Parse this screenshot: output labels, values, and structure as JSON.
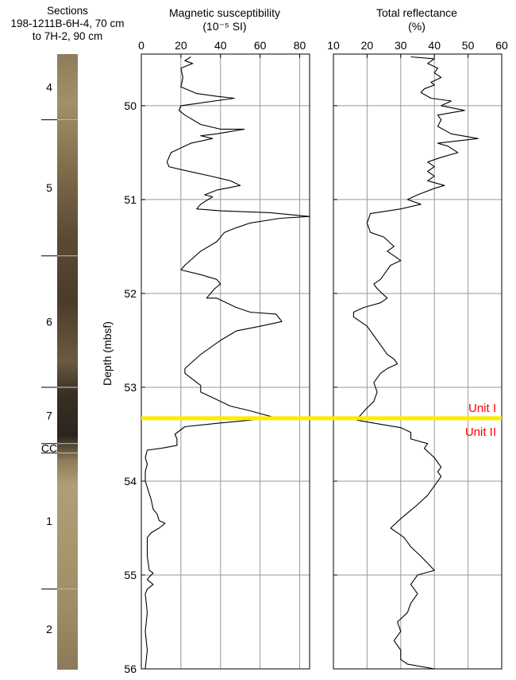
{
  "core": {
    "header": [
      "Sections",
      "198-1211B-6H-4, 70 cm",
      "to 7H-2, 90 cm"
    ],
    "sections": [
      {
        "label": "4",
        "top": 49.45,
        "bottom": 50.15
      },
      {
        "label": "5",
        "top": 50.15,
        "bottom": 51.6
      },
      {
        "label": "6",
        "top": 51.6,
        "bottom": 53.0
      },
      {
        "label": "7",
        "top": 53.0,
        "bottom": 53.6
      },
      {
        "label": "CC",
        "top": 53.6,
        "bottom": 53.7
      },
      {
        "label": "1",
        "top": 53.7,
        "bottom": 55.15
      },
      {
        "label": "2",
        "top": 55.15,
        "bottom": 56.0
      }
    ]
  },
  "chart_data": [
    {
      "type": "line",
      "title": [
        "Magnetic susceptibility",
        "(10⁻⁵ SI)"
      ],
      "xlabel": "",
      "ylabel": "Depth (mbsf)",
      "xlim": [
        0,
        85
      ],
      "ylim": [
        56,
        49.45
      ],
      "xticks": [
        0,
        20,
        40,
        60,
        80
      ],
      "yticks": [
        50,
        51,
        52,
        53,
        54,
        55,
        56
      ],
      "grid": true,
      "points": [
        [
          25,
          49.48
        ],
        [
          22,
          49.52
        ],
        [
          26,
          49.55
        ],
        [
          20,
          49.6
        ],
        [
          21,
          49.7
        ],
        [
          20,
          49.8
        ],
        [
          28,
          49.87
        ],
        [
          38,
          49.9
        ],
        [
          47,
          49.92
        ],
        [
          30,
          49.97
        ],
        [
          20,
          50.0
        ],
        [
          19,
          50.05
        ],
        [
          22,
          50.1
        ],
        [
          30,
          50.2
        ],
        [
          40,
          50.25
        ],
        [
          52,
          50.25
        ],
        [
          38,
          50.3
        ],
        [
          30,
          50.32
        ],
        [
          36,
          50.35
        ],
        [
          25,
          50.4
        ],
        [
          15,
          50.5
        ],
        [
          13,
          50.6
        ],
        [
          14,
          50.65
        ],
        [
          20,
          50.68
        ],
        [
          35,
          50.75
        ],
        [
          45,
          50.8
        ],
        [
          50,
          50.85
        ],
        [
          38,
          50.9
        ],
        [
          32,
          50.95
        ],
        [
          36,
          50.97
        ],
        [
          30,
          51.05
        ],
        [
          28,
          51.1
        ],
        [
          40,
          51.12
        ],
        [
          65,
          51.14
        ],
        [
          85,
          51.18
        ],
        [
          70,
          51.2
        ],
        [
          55,
          51.25
        ],
        [
          48,
          51.3
        ],
        [
          42,
          51.35
        ],
        [
          38,
          51.45
        ],
        [
          30,
          51.55
        ],
        [
          22,
          51.7
        ],
        [
          20,
          51.75
        ],
        [
          30,
          51.8
        ],
        [
          38,
          51.85
        ],
        [
          40,
          51.9
        ],
        [
          37,
          51.95
        ],
        [
          33,
          52.05
        ],
        [
          38,
          52.05
        ],
        [
          48,
          52.15
        ],
        [
          55,
          52.2
        ],
        [
          68,
          52.22
        ],
        [
          71,
          52.3
        ],
        [
          60,
          52.35
        ],
        [
          48,
          52.4
        ],
        [
          40,
          52.5
        ],
        [
          30,
          52.65
        ],
        [
          22,
          52.8
        ],
        [
          22,
          52.85
        ],
        [
          25,
          52.9
        ],
        [
          30,
          52.98
        ],
        [
          30,
          53.05
        ],
        [
          35,
          53.1
        ],
        [
          45,
          53.2
        ],
        [
          55,
          53.25
        ],
        [
          60,
          53.28
        ],
        [
          67,
          53.32
        ],
        [
          55,
          53.35
        ],
        [
          40,
          53.38
        ],
        [
          22,
          53.42
        ],
        [
          17,
          53.5
        ],
        [
          18,
          53.55
        ],
        [
          18,
          53.62
        ],
        [
          10,
          53.65
        ],
        [
          3,
          53.67
        ],
        [
          2,
          53.75
        ],
        [
          3,
          53.82
        ],
        [
          2,
          53.9
        ],
        [
          2,
          54.0
        ],
        [
          5,
          54.2
        ],
        [
          6,
          54.3
        ],
        [
          8,
          54.35
        ],
        [
          9,
          54.42
        ],
        [
          12,
          54.45
        ],
        [
          9,
          54.5
        ],
        [
          5,
          54.55
        ],
        [
          3,
          54.6
        ],
        [
          3,
          54.8
        ],
        [
          4,
          54.95
        ],
        [
          6,
          54.98
        ],
        [
          4,
          55.02
        ],
        [
          3,
          55.05
        ],
        [
          6,
          55.1
        ],
        [
          3,
          55.15
        ],
        [
          2,
          55.2
        ],
        [
          3,
          55.4
        ],
        [
          2,
          55.6
        ],
        [
          3,
          55.8
        ],
        [
          2,
          56.0
        ]
      ]
    },
    {
      "type": "line",
      "title": [
        "Total reflectance",
        "(%)"
      ],
      "xlabel": "",
      "ylabel": "",
      "xlim": [
        10,
        60
      ],
      "ylim": [
        56,
        49.45
      ],
      "xticks": [
        10,
        20,
        30,
        40,
        50,
        60
      ],
      "yticks": [
        50,
        51,
        52,
        53,
        54,
        55,
        56
      ],
      "grid": true,
      "points": [
        [
          33,
          49.48
        ],
        [
          40,
          49.5
        ],
        [
          38,
          49.55
        ],
        [
          41,
          49.6
        ],
        [
          40,
          49.65
        ],
        [
          42,
          49.7
        ],
        [
          39,
          49.75
        ],
        [
          40,
          49.78
        ],
        [
          37,
          49.82
        ],
        [
          36,
          49.86
        ],
        [
          39,
          49.92
        ],
        [
          45,
          49.95
        ],
        [
          42,
          50.0
        ],
        [
          49,
          50.05
        ],
        [
          41,
          50.1
        ],
        [
          42,
          50.15
        ],
        [
          41,
          50.22
        ],
        [
          45,
          50.3
        ],
        [
          53,
          50.35
        ],
        [
          41,
          50.4
        ],
        [
          44,
          50.43
        ],
        [
          47,
          50.5
        ],
        [
          42,
          50.55
        ],
        [
          38,
          50.6
        ],
        [
          40,
          50.65
        ],
        [
          38,
          50.7
        ],
        [
          40,
          50.75
        ],
        [
          38,
          50.8
        ],
        [
          43,
          50.85
        ],
        [
          40,
          50.88
        ],
        [
          35,
          50.95
        ],
        [
          32,
          51.0
        ],
        [
          36,
          51.05
        ],
        [
          30,
          51.1
        ],
        [
          21,
          51.15
        ],
        [
          20,
          51.25
        ],
        [
          21,
          51.35
        ],
        [
          25,
          51.4
        ],
        [
          28,
          51.5
        ],
        [
          26,
          51.55
        ],
        [
          30,
          51.65
        ],
        [
          27,
          51.7
        ],
        [
          25,
          51.8
        ],
        [
          24,
          51.85
        ],
        [
          22,
          51.9
        ],
        [
          23,
          51.95
        ],
        [
          26,
          52.05
        ],
        [
          24,
          52.1
        ],
        [
          19,
          52.15
        ],
        [
          16,
          52.2
        ],
        [
          16,
          52.25
        ],
        [
          18,
          52.3
        ],
        [
          20,
          52.35
        ],
        [
          22,
          52.45
        ],
        [
          24,
          52.55
        ],
        [
          26,
          52.65
        ],
        [
          28,
          52.7
        ],
        [
          29,
          52.75
        ],
        [
          26,
          52.8
        ],
        [
          24,
          52.85
        ],
        [
          22,
          52.95
        ],
        [
          23,
          53.05
        ],
        [
          22,
          53.15
        ],
        [
          20,
          53.22
        ],
        [
          18,
          53.3
        ],
        [
          17,
          53.33
        ],
        [
          17,
          53.35
        ],
        [
          25,
          53.4
        ],
        [
          30,
          53.43
        ],
        [
          33,
          53.48
        ],
        [
          33,
          53.55
        ],
        [
          38,
          53.6
        ],
        [
          37,
          53.65
        ],
        [
          40,
          53.75
        ],
        [
          42,
          53.85
        ],
        [
          41,
          53.9
        ],
        [
          42,
          53.95
        ],
        [
          40,
          54.05
        ],
        [
          38,
          54.15
        ],
        [
          35,
          54.25
        ],
        [
          30,
          54.4
        ],
        [
          27,
          54.5
        ],
        [
          29,
          54.55
        ],
        [
          31,
          54.6
        ],
        [
          33,
          54.7
        ],
        [
          36,
          54.8
        ],
        [
          40,
          54.95
        ],
        [
          35,
          55.0
        ],
        [
          33,
          55.1
        ],
        [
          35,
          55.2
        ],
        [
          33,
          55.3
        ],
        [
          32,
          55.4
        ],
        [
          29,
          55.5
        ],
        [
          30,
          55.6
        ],
        [
          28,
          55.7
        ],
        [
          30,
          55.8
        ],
        [
          30,
          55.9
        ],
        [
          32,
          55.95
        ],
        [
          40,
          56.0
        ]
      ]
    }
  ],
  "units": {
    "boundary_depth": 53.33,
    "boundary_color": "#ffea00",
    "label_color": "#ff0000",
    "upper": "Unit I",
    "lower": "Unit II"
  }
}
